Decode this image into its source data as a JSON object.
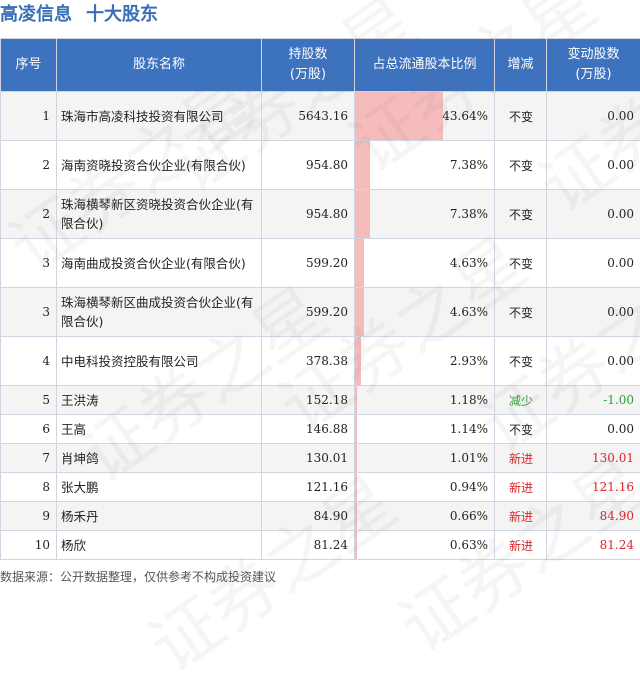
{
  "header": {
    "company": "高凌信息",
    "section": "十大股东"
  },
  "table": {
    "columns": [
      "序号",
      "股东名称",
      "持股数\n(万股)",
      "占总流通股本比例",
      "增减",
      "变动股数\n(万股)"
    ],
    "rows": [
      {
        "rank": "1",
        "name": "珠海市高凌科技投资有限公司",
        "shares": "5643.16",
        "ratio": "43.64%",
        "ratio_value": 43.64,
        "change": "不变",
        "change_tone": "black",
        "delta": "0.00",
        "delta_tone": "black"
      },
      {
        "rank": "2",
        "name": "海南资晓投资合伙企业(有限合伙)",
        "shares": "954.80",
        "ratio": "7.38%",
        "ratio_value": 7.38,
        "change": "不变",
        "change_tone": "black",
        "delta": "0.00",
        "delta_tone": "black"
      },
      {
        "rank": "2",
        "name": "珠海横琴新区资晓投资合伙企业(有限合伙)",
        "shares": "954.80",
        "ratio": "7.38%",
        "ratio_value": 7.38,
        "change": "不变",
        "change_tone": "black",
        "delta": "0.00",
        "delta_tone": "black"
      },
      {
        "rank": "3",
        "name": "海南曲成投资合伙企业(有限合伙)",
        "shares": "599.20",
        "ratio": "4.63%",
        "ratio_value": 4.63,
        "change": "不变",
        "change_tone": "black",
        "delta": "0.00",
        "delta_tone": "black"
      },
      {
        "rank": "3",
        "name": "珠海横琴新区曲成投资合伙企业(有限合伙)",
        "shares": "599.20",
        "ratio": "4.63%",
        "ratio_value": 4.63,
        "change": "不变",
        "change_tone": "black",
        "delta": "0.00",
        "delta_tone": "black"
      },
      {
        "rank": "4",
        "name": "中电科投资控股有限公司",
        "shares": "378.38",
        "ratio": "2.93%",
        "ratio_value": 2.93,
        "change": "不变",
        "change_tone": "black",
        "delta": "0.00",
        "delta_tone": "black"
      },
      {
        "rank": "5",
        "name": "王洪涛",
        "shares": "152.18",
        "ratio": "1.18%",
        "ratio_value": 1.18,
        "change": "减少",
        "change_tone": "green",
        "delta": "-1.00",
        "delta_tone": "green"
      },
      {
        "rank": "6",
        "name": "王高",
        "shares": "146.88",
        "ratio": "1.14%",
        "ratio_value": 1.14,
        "change": "不变",
        "change_tone": "black",
        "delta": "0.00",
        "delta_tone": "black"
      },
      {
        "rank": "7",
        "name": "肖坤鸽",
        "shares": "130.01",
        "ratio": "1.01%",
        "ratio_value": 1.01,
        "change": "新进",
        "change_tone": "red",
        "delta": "130.01",
        "delta_tone": "red"
      },
      {
        "rank": "8",
        "name": "张大鹏",
        "shares": "121.16",
        "ratio": "0.94%",
        "ratio_value": 0.94,
        "change": "新进",
        "change_tone": "red",
        "delta": "121.16",
        "delta_tone": "red"
      },
      {
        "rank": "9",
        "name": "杨禾丹",
        "shares": "84.90",
        "ratio": "0.66%",
        "ratio_value": 0.66,
        "change": "新进",
        "change_tone": "red",
        "delta": "84.90",
        "delta_tone": "red"
      },
      {
        "rank": "10",
        "name": "杨欣",
        "shares": "81.24",
        "ratio": "0.63%",
        "ratio_value": 0.63,
        "change": "新进",
        "change_tone": "red",
        "delta": "81.24",
        "delta_tone": "red"
      }
    ]
  },
  "footer": {
    "source": "数据来源：公开数据整理，仅供参考不构成投资建议"
  },
  "watermark": "证券之星",
  "colors": {
    "header_bg": "#3d72bf",
    "title": "#3a6fb6",
    "bar": "#f6bcbc",
    "up": "#d9262d",
    "down": "#2f9e3a"
  }
}
